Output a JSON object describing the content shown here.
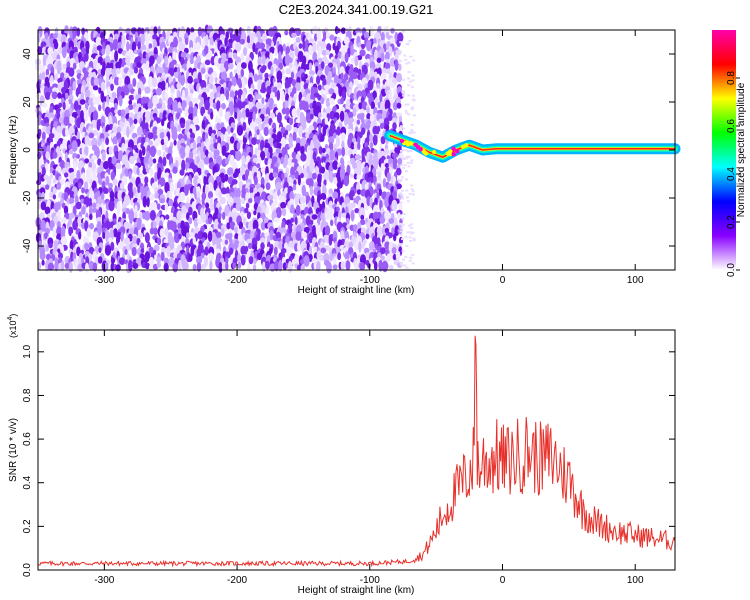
{
  "title": "C2E3.2024.341.00.19.G21",
  "chart_data": [
    {
      "type": "heatmap",
      "xlabel": "Height of straight line (km)",
      "ylabel": "Frequency (Hz)",
      "xlim": [
        -350,
        130
      ],
      "ylim": [
        -50,
        50
      ],
      "xticks": [
        -300,
        -200,
        -100,
        0,
        100
      ],
      "yticks": [
        -40,
        -20,
        0,
        20,
        40
      ],
      "noise_region_x": [
        -350,
        -78
      ],
      "track": {
        "x": [
          -85,
          -75,
          -65,
          -55,
          -45,
          -35,
          -25,
          -15,
          -5,
          0,
          50,
          100,
          130
        ],
        "freq": [
          6,
          4,
          2,
          -1,
          -3,
          0,
          2,
          0,
          0.5,
          0.5,
          0.5,
          0.5,
          0.5
        ]
      },
      "colorbar": {
        "label": "Normalized spectral amplitude",
        "range": [
          0.0,
          1.0
        ],
        "ticks": [
          "0.0",
          "0.2",
          "0.4",
          "0.6",
          "0.8"
        ],
        "colors": [
          "#ffffff",
          "#8800ff",
          "#0000ff",
          "#00ffff",
          "#00ff00",
          "#ffff00",
          "#ff0000",
          "#ff00aa"
        ]
      }
    },
    {
      "type": "line",
      "xlabel": "Height of straight line (km)",
      "ylabel": "SNR (10 * v/v)",
      "y_multiplier": "(x10",
      "y_multiplier_exp": "4",
      "y_multiplier_close": ")",
      "xlim": [
        -350,
        130
      ],
      "ylim": [
        0.0,
        1.1
      ],
      "xticks": [
        -300,
        -200,
        -100,
        0,
        100
      ],
      "yticks": [
        "0.0",
        "0.2",
        "0.4",
        "0.6",
        "0.8",
        "1.0"
      ],
      "series": [
        {
          "color": "#e8302a",
          "x": [
            -350,
            -300,
            -250,
            -200,
            -150,
            -100,
            -70,
            -60,
            -55,
            -50,
            -45,
            -40,
            -35,
            -30,
            -25,
            -22,
            -20,
            -19,
            -18,
            -15,
            -10,
            -5,
            0,
            5,
            10,
            15,
            20,
            25,
            30,
            35,
            40,
            45,
            50,
            55,
            60,
            70,
            80,
            90,
            100,
            110,
            120,
            130
          ],
          "y": [
            0.03,
            0.03,
            0.03,
            0.03,
            0.03,
            0.03,
            0.04,
            0.07,
            0.12,
            0.18,
            0.25,
            0.3,
            0.36,
            0.4,
            0.45,
            0.5,
            1.1,
            0.55,
            0.45,
            0.5,
            0.5,
            0.52,
            0.5,
            0.5,
            0.52,
            0.53,
            0.55,
            0.52,
            0.5,
            0.52,
            0.5,
            0.45,
            0.42,
            0.35,
            0.28,
            0.22,
            0.19,
            0.17,
            0.16,
            0.15,
            0.14,
            0.13
          ]
        }
      ]
    }
  ]
}
